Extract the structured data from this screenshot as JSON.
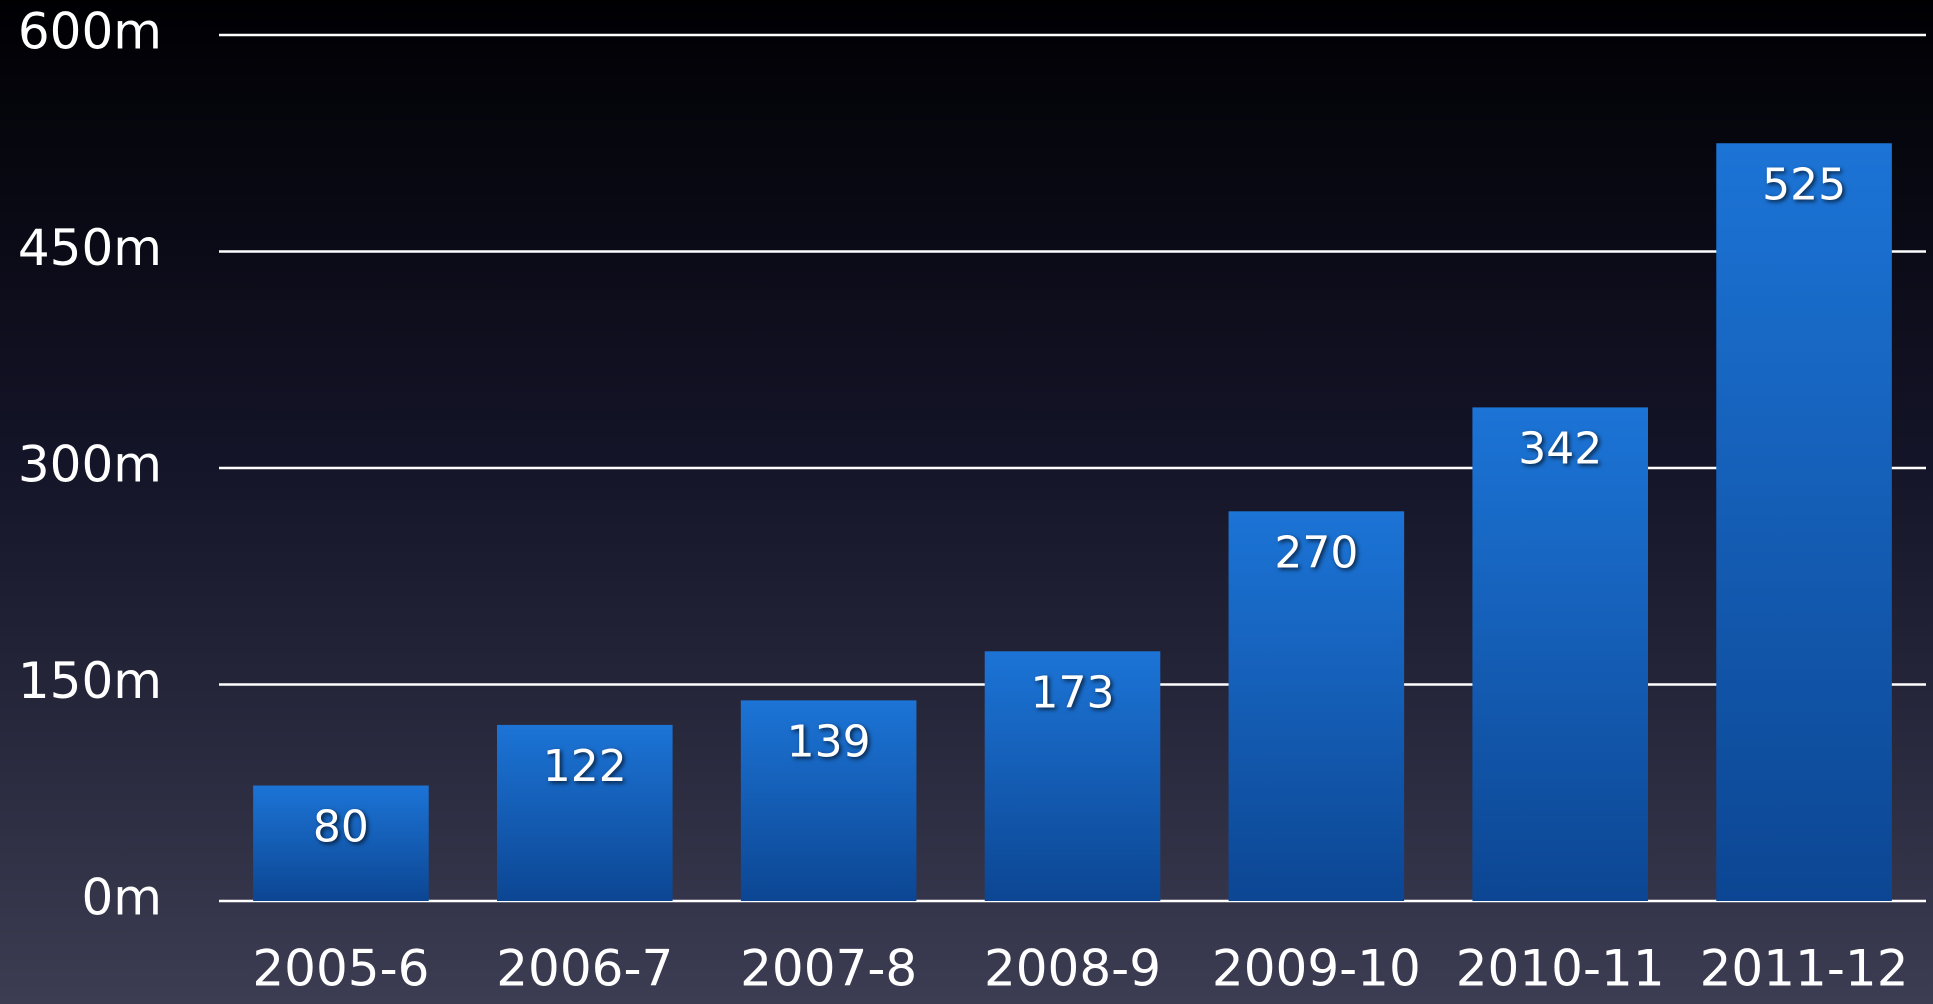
{
  "chart_data": {
    "type": "bar",
    "categories": [
      "2005-6",
      "2006-7",
      "2007-8",
      "2008-9",
      "2009-10",
      "2010-11",
      "2011-12"
    ],
    "values": [
      80,
      122,
      139,
      173,
      270,
      342,
      525
    ],
    "color": "#1566c4",
    "ylim": [
      0,
      600
    ],
    "yticks": [
      {
        "value": 0,
        "label": "0m"
      },
      {
        "value": 150,
        "label": "150m"
      },
      {
        "value": 300,
        "label": "300m"
      },
      {
        "value": 450,
        "label": "450m"
      },
      {
        "value": 600,
        "label": "600m"
      }
    ],
    "grid": true
  }
}
